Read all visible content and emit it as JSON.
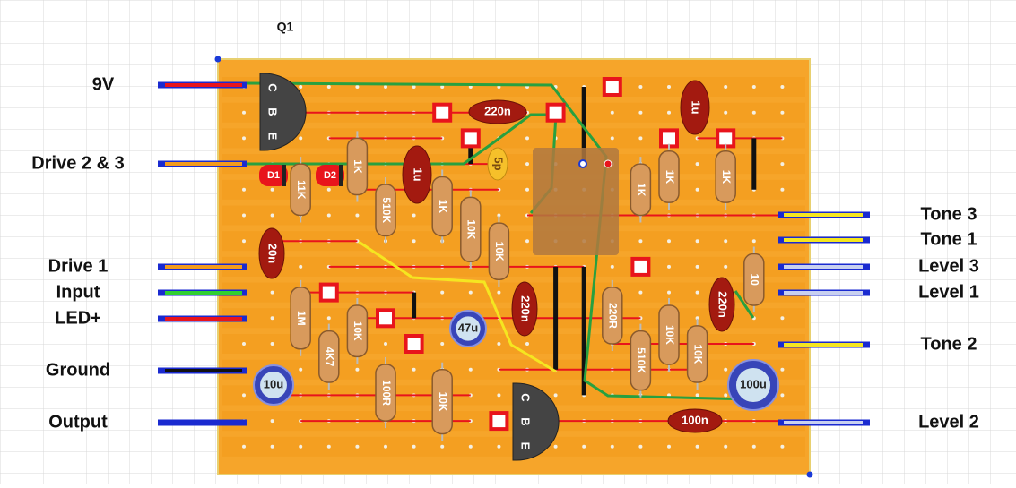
{
  "title": "Q1",
  "left_labels": [
    "9V",
    "Drive 2 & 3",
    "Drive 1",
    "Input",
    "LED+",
    "Ground",
    "Output"
  ],
  "right_labels": [
    "Tone 3",
    "Tone 1",
    "Level 3",
    "Level 1",
    "Tone 2",
    "Level 2"
  ],
  "resistors": [
    "1K",
    "11K",
    "510K",
    "1K",
    "10K",
    "10K",
    "1K",
    "1K",
    "1K",
    "10",
    "1M",
    "10K",
    "4K7",
    "100R",
    "10K",
    "220R",
    "510K",
    "10K",
    "10K"
  ],
  "capacitors": [
    "220n",
    "1u",
    "1u",
    "5p",
    "20n",
    "220n",
    "220n",
    "47u",
    "10u",
    "100u",
    "100n"
  ],
  "diodes": [
    "D1",
    "D2"
  ],
  "transistors": [
    {
      "pins": [
        "C",
        "B",
        "E"
      ]
    },
    {
      "pins": [
        "C",
        "B",
        "E"
      ]
    }
  ]
}
